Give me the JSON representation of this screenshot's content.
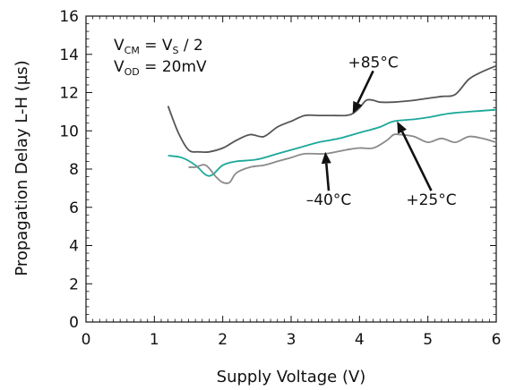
{
  "chart_data": {
    "type": "line",
    "xlabel": "Supply Voltage (V)",
    "ylabel": "Propagation Delay L-H (µs)",
    "xlim": [
      0,
      6
    ],
    "ylim": [
      0,
      16
    ],
    "x_ticks": [
      "0",
      "1",
      "2",
      "3",
      "4",
      "5",
      "6"
    ],
    "y_ticks": [
      "0",
      "2",
      "4",
      "6",
      "8",
      "10",
      "12",
      "14",
      "16"
    ],
    "grid": false,
    "colors": {
      "+85°C": "#555555",
      "+25°C": "#1aa89a",
      "-40°C": "#8a8a8a"
    },
    "conditions": {
      "vcm": {
        "main": "V",
        "sub": "CM",
        "eq": " = V",
        "sub2": "S",
        "tail": " / 2"
      },
      "vod": {
        "main": "V",
        "sub": "OD",
        "tail": " = 20mV"
      }
    },
    "series": [
      {
        "name": "+85°C",
        "x": [
          1.2,
          1.35,
          1.5,
          1.65,
          1.8,
          2.0,
          2.2,
          2.4,
          2.6,
          2.8,
          3.0,
          3.2,
          3.4,
          3.6,
          3.8,
          3.9,
          4.0,
          4.1,
          4.2,
          4.3,
          4.5,
          4.8,
          5.0,
          5.2,
          5.4,
          5.6,
          5.8,
          6.0
        ],
        "y": [
          11.3,
          9.9,
          9.0,
          8.9,
          8.9,
          9.1,
          9.5,
          9.8,
          9.7,
          10.2,
          10.5,
          10.8,
          10.8,
          10.8,
          10.8,
          10.9,
          11.2,
          11.6,
          11.6,
          11.5,
          11.5,
          11.6,
          11.7,
          11.8,
          11.9,
          12.7,
          13.1,
          13.4
        ]
      },
      {
        "name": "+25°C",
        "x": [
          1.2,
          1.4,
          1.6,
          1.75,
          1.85,
          2.0,
          2.2,
          2.5,
          2.8,
          3.1,
          3.4,
          3.7,
          4.0,
          4.3,
          4.5,
          4.8,
          5.0,
          5.3,
          5.6,
          6.0
        ],
        "y": [
          8.7,
          8.6,
          8.2,
          7.7,
          7.7,
          8.2,
          8.4,
          8.5,
          8.8,
          9.1,
          9.4,
          9.6,
          9.9,
          10.2,
          10.5,
          10.6,
          10.7,
          10.9,
          11.0,
          11.1
        ]
      },
      {
        "name": "-40°C",
        "x": [
          1.5,
          1.6,
          1.75,
          1.9,
          2.0,
          2.1,
          2.2,
          2.4,
          2.6,
          2.8,
          3.0,
          3.2,
          3.5,
          3.8,
          4.0,
          4.2,
          4.4,
          4.5,
          4.6,
          4.8,
          5.0,
          5.2,
          5.4,
          5.6,
          5.8,
          6.0
        ],
        "y": [
          8.1,
          8.1,
          8.2,
          7.6,
          7.3,
          7.3,
          7.8,
          8.1,
          8.2,
          8.4,
          8.6,
          8.8,
          8.8,
          9.0,
          9.1,
          9.1,
          9.5,
          9.8,
          9.8,
          9.7,
          9.4,
          9.6,
          9.4,
          9.7,
          9.6,
          9.4
        ]
      }
    ],
    "annotations": [
      {
        "text": "+85°C",
        "series": "+85°C",
        "x": 3.9,
        "y": 10.9,
        "label_x": 4.2,
        "label_y": 13.6
      },
      {
        "text": "+25°C",
        "series": "+25°C",
        "x": 4.55,
        "y": 10.5,
        "label_x": 5.05,
        "label_y": 6.4
      },
      {
        "text": "–40°C",
        "series": "-40°C",
        "x": 3.5,
        "y": 8.9,
        "label_x": 3.55,
        "label_y": 6.4
      }
    ]
  }
}
